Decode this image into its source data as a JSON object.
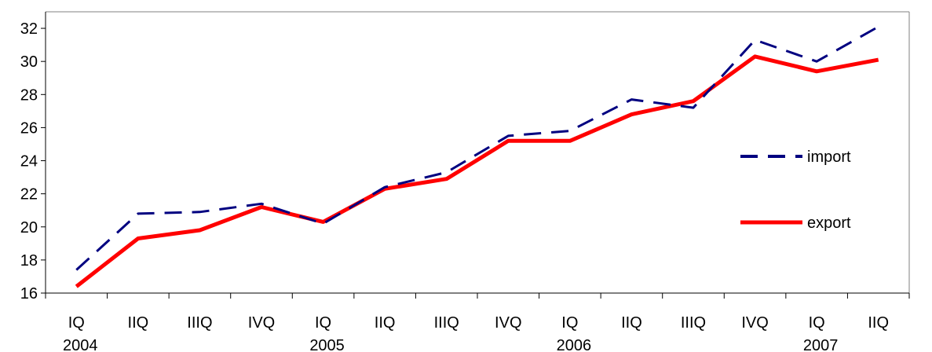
{
  "chart_data": {
    "type": "line",
    "categories": [
      "IQ",
      "IIQ",
      "IIIQ",
      "IVQ",
      "IQ",
      "IIQ",
      "IIIQ",
      "IVQ",
      "IQ",
      "IIQ",
      "IIIQ",
      "IVQ",
      "IQ",
      "IIQ"
    ],
    "years": [
      {
        "label": "2004",
        "category_index": 0
      },
      {
        "label": "2005",
        "category_index": 4
      },
      {
        "label": "2006",
        "category_index": 8
      },
      {
        "label": "2007",
        "category_index": 12
      }
    ],
    "series": [
      {
        "name": "import",
        "color": "#000080",
        "style": "dashed",
        "values": [
          17.4,
          20.8,
          20.9,
          21.4,
          20.2,
          22.4,
          23.3,
          25.5,
          25.8,
          27.7,
          27.2,
          31.3,
          30.0,
          32.1
        ]
      },
      {
        "name": "export",
        "color": "#ff0000",
        "style": "solid",
        "values": [
          16.4,
          19.3,
          19.8,
          21.2,
          20.3,
          22.3,
          22.9,
          25.2,
          25.2,
          26.8,
          27.6,
          30.3,
          29.4,
          30.1
        ]
      }
    ],
    "ylim": [
      16,
      33
    ],
    "yticks": [
      "16",
      "18",
      "20",
      "22",
      "24",
      "26",
      "28",
      "30",
      "32"
    ],
    "title": "",
    "xlabel": "",
    "ylabel": "",
    "grid": false,
    "legend_position": "right"
  }
}
